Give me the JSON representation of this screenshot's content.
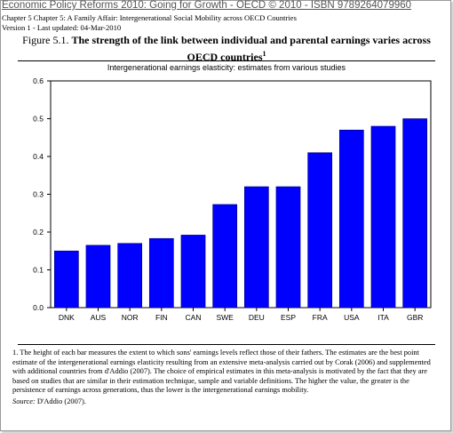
{
  "header": {
    "link_text": "Economic Policy Reforms 2010: Going for Growth - OECD © 2010 - ISBN 9789264079960",
    "chapter_line": "Chapter 5   Chapter 5: A Family Affair: Intergenerational Social Mobility across OECD Countries",
    "version_line": "Version 1 - Last updated: 04-Mar-2010"
  },
  "figure": {
    "number": "Figure 5.1.",
    "title": "The strength of the link between individual and parental earnings varies across OECD countries",
    "title_sup": "1",
    "subtitle": "Intergenerational earnings elasticity: estimates from various studies"
  },
  "chart_data": {
    "type": "bar",
    "categories": [
      "DNK",
      "AUS",
      "NOR",
      "FIN",
      "CAN",
      "SWE",
      "DEU",
      "ESP",
      "FRA",
      "USA",
      "ITA",
      "GBR"
    ],
    "values": [
      0.15,
      0.165,
      0.17,
      0.183,
      0.192,
      0.273,
      0.32,
      0.32,
      0.41,
      0.47,
      0.48,
      0.5
    ],
    "ylim": [
      0,
      0.6
    ],
    "yticks": [
      "0.0",
      "0.1",
      "0.2",
      "0.3",
      "0.4",
      "0.5",
      "0.6"
    ],
    "bar_color": "#0000ff",
    "grid": false,
    "legend": "none"
  },
  "notes": {
    "note_1": "1.  The height of each bar measures the extent to which sons' earnings levels reflect those of their fathers. The estimates are the best point estimate of the intergenerational earnings elasticity resulting from an extensive meta-analysis carried out by Corak (2006) and supplemented with additional countries from d'Addio (2007). The choice of empirical estimates in this meta-analysis is motivated by the fact that they are based on studies that are similar in their estimation technique, sample and variable definitions. The higher the value, the greater is the persistence of earnings across generations, thus the lower is the intergenerational earnings mobility.",
    "source_label": "Source:",
    "source_text": " D'Addio (2007)."
  }
}
